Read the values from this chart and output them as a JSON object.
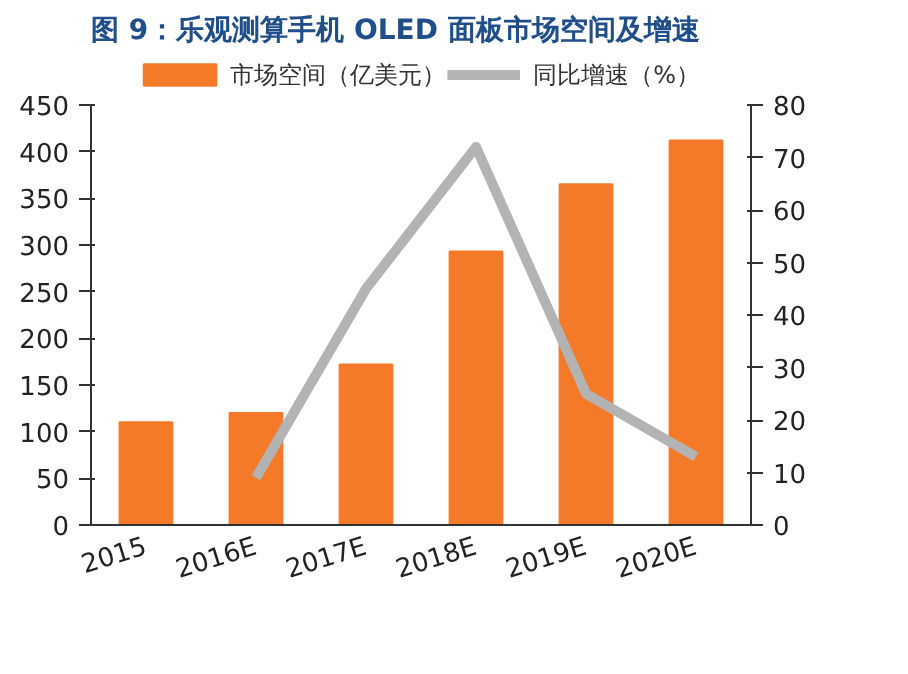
{
  "chart_data": {
    "type": "bar",
    "title": "图 9：乐观测算手机 OLED 面板市场空间及增速",
    "categories": [
      "2015",
      "2016E",
      "2017E",
      "2018E",
      "2019E",
      "2020E"
    ],
    "series": [
      {
        "name": "市场空间（亿美元）",
        "color": "#f47a2a",
        "values": [
          110,
          120,
          172,
          293,
          365,
          412
        ]
      },
      {
        "name": "同比增速（%）",
        "color": "#b3b3b3",
        "type": "line",
        "axis": "y2",
        "values": [
          null,
          9,
          45,
          72,
          25,
          13
        ]
      }
    ],
    "ylim": [
      0,
      450
    ],
    "yticks": [
      0,
      50,
      100,
      150,
      200,
      250,
      300,
      350,
      400,
      450
    ],
    "y2lim": [
      0,
      80
    ],
    "y2ticks": [
      0,
      10,
      20,
      30,
      40,
      50,
      60,
      70,
      80
    ],
    "legend": "top",
    "grid": false
  }
}
